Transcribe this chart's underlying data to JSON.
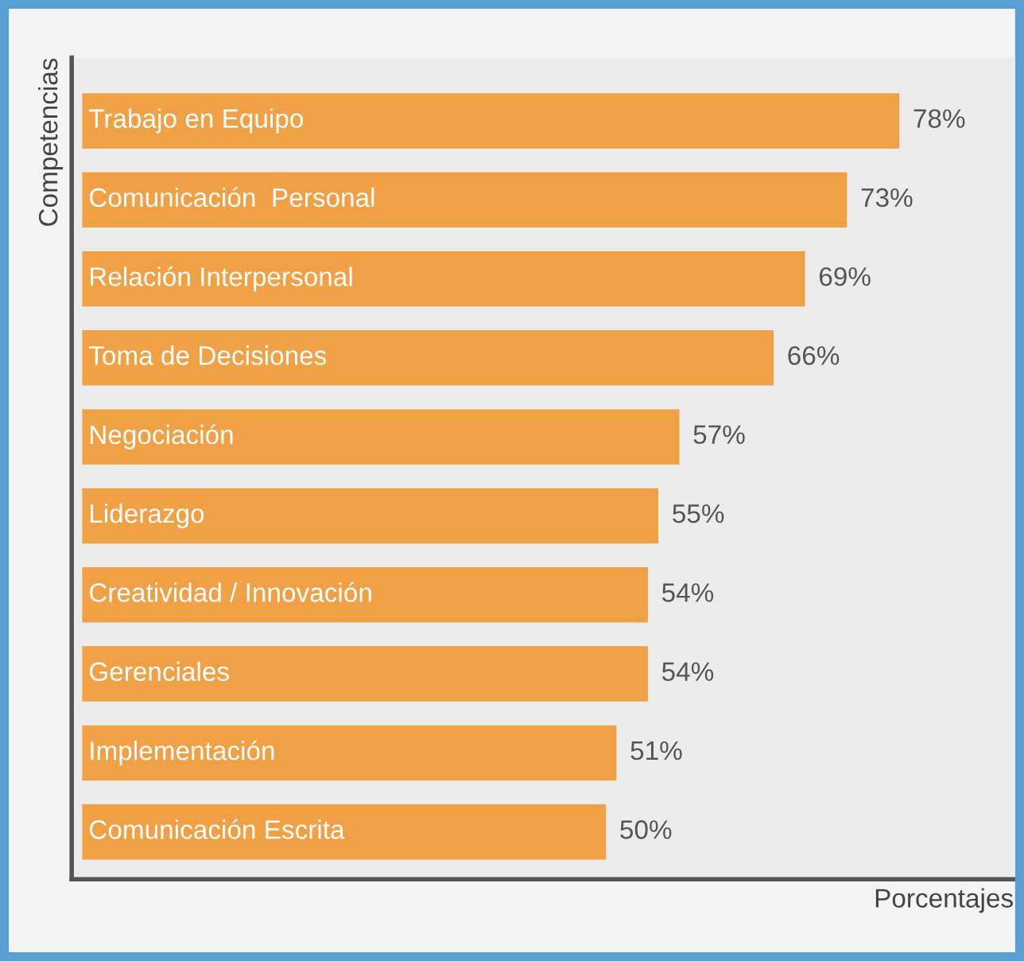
{
  "chart_data": {
    "type": "bar",
    "orientation": "horizontal",
    "relative": false,
    "xlabel": "Porcentajes",
    "ylabel": "Competencias",
    "categories": [
      "Trabajo en Equipo",
      "Comunicación  Personal",
      "Relación Interpersonal",
      "Toma de Decisiones",
      "Negociación",
      "Liderazgo",
      "Creatividad / Innovación",
      "Gerenciales",
      "Implementación",
      "Comunicación Escrita"
    ],
    "values": [
      78,
      73,
      69,
      66,
      57,
      55,
      54,
      54,
      51,
      50
    ],
    "value_labels": [
      "78%",
      "73%",
      "69%",
      "66%",
      "57%",
      "55%",
      "54%",
      "54%",
      "51%",
      "50%"
    ],
    "color": "#f0a045",
    "tick_labels": false
  }
}
